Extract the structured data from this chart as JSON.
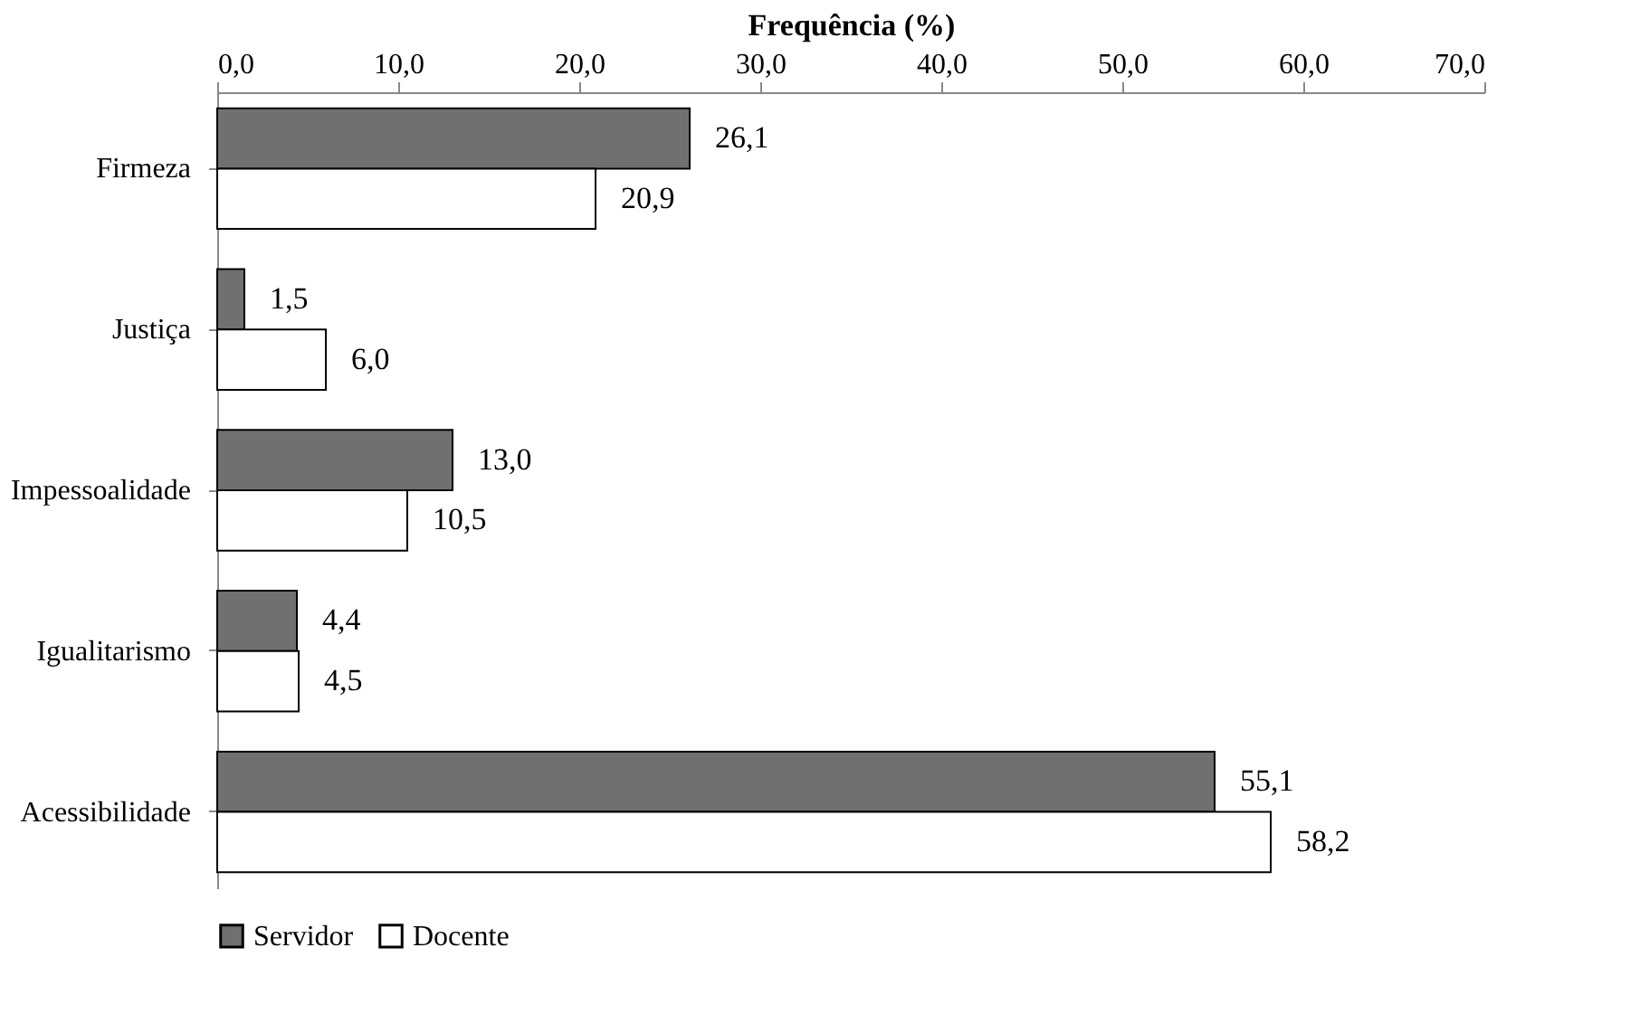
{
  "chart_data": {
    "type": "bar",
    "orientation": "horizontal",
    "xlabel": "Frequência (%)",
    "categories": [
      "Firmeza",
      "Justiça",
      "Impessoalidade",
      "Igualitarismo",
      "Acessibilidade"
    ],
    "series": [
      {
        "name": "Servidor",
        "color": "#707070",
        "values": [
          26.1,
          1.5,
          13.0,
          4.4,
          55.1
        ],
        "value_labels": [
          "26,1",
          "1,5",
          "13,0",
          "4,4",
          "55,1"
        ]
      },
      {
        "name": "Docente",
        "color": "#ffffff",
        "values": [
          20.9,
          6.0,
          10.5,
          4.5,
          58.2
        ],
        "value_labels": [
          "20,9",
          "6,0",
          "10,5",
          "4,5",
          "58,2"
        ]
      }
    ],
    "xlim": [
      0,
      70
    ],
    "xticks": [
      {
        "value": 0,
        "label": "0,0"
      },
      {
        "value": 10,
        "label": "10,0"
      },
      {
        "value": 20,
        "label": "20,0"
      },
      {
        "value": 30,
        "label": "30,0"
      },
      {
        "value": 40,
        "label": "40,0"
      },
      {
        "value": 50,
        "label": "50,0"
      },
      {
        "value": 60,
        "label": "60,0"
      },
      {
        "value": 70,
        "label": "70,0"
      }
    ],
    "grid": false,
    "legend": "bottom"
  }
}
